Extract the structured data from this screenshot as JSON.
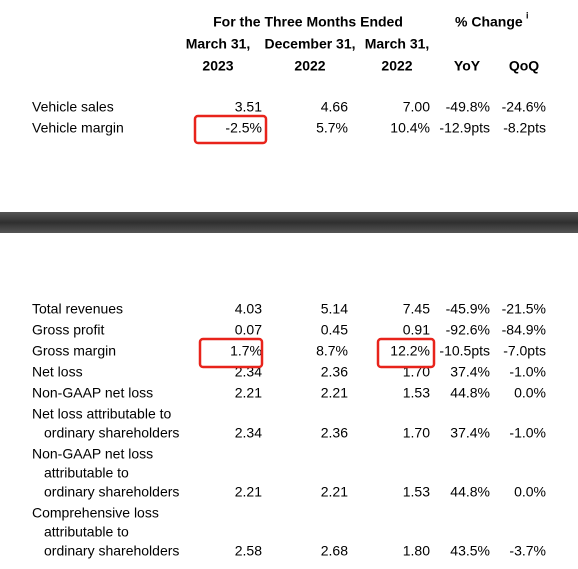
{
  "header": {
    "title": "For the Three Months Ended",
    "change_title": "% Change",
    "change_note": "i",
    "columns": [
      {
        "date": "March 31,",
        "year": "2023"
      },
      {
        "date": "December 31,",
        "year": "2022"
      },
      {
        "date": "March 31,",
        "year": "2022"
      }
    ],
    "change_columns": [
      "YoY",
      "QoQ"
    ]
  },
  "table_1": {
    "rows": [
      {
        "label": [
          "Vehicle sales"
        ],
        "values": [
          "3.51",
          "4.66",
          "7.00",
          "-49.8%",
          "-24.6%"
        ]
      },
      {
        "label": [
          "Vehicle margin"
        ],
        "values": [
          "-2.5%",
          "5.7%",
          "10.4%",
          "-12.9pts",
          "-8.2pts"
        ]
      }
    ]
  },
  "table_2": {
    "rows": [
      {
        "label": [
          "Total revenues"
        ],
        "values": [
          "4.03",
          "5.14",
          "7.45",
          "-45.9%",
          "-21.5%"
        ]
      },
      {
        "label": [
          "Gross profit"
        ],
        "values": [
          "0.07",
          "0.45",
          "0.91",
          "-92.6%",
          "-84.9%"
        ]
      },
      {
        "label": [
          "Gross margin"
        ],
        "values": [
          "1.7%",
          "8.7%",
          "12.2%",
          "-10.5pts",
          "-7.0pts"
        ]
      },
      {
        "label": [
          "Net loss"
        ],
        "values": [
          "2.34",
          "2.36",
          "1.70",
          "37.4%",
          "-1.0%"
        ]
      },
      {
        "label": [
          "Non-GAAP net loss"
        ],
        "values": [
          "2.21",
          "2.21",
          "1.53",
          "44.8%",
          "0.0%"
        ]
      },
      {
        "label": [
          "Net loss attributable to",
          "ordinary shareholders"
        ],
        "values": [
          "2.34",
          "2.36",
          "1.70",
          "37.4%",
          "-1.0%"
        ]
      },
      {
        "label": [
          "Non-GAAP net loss",
          "attributable to",
          "ordinary shareholders"
        ],
        "values": [
          "2.21",
          "2.21",
          "1.53",
          "44.8%",
          "0.0%"
        ]
      },
      {
        "label": [
          "Comprehensive loss",
          "attributable to",
          "ordinary shareholders"
        ],
        "values": [
          "2.58",
          "2.68",
          "1.80",
          "43.5%",
          "-3.7%"
        ]
      }
    ]
  }
}
